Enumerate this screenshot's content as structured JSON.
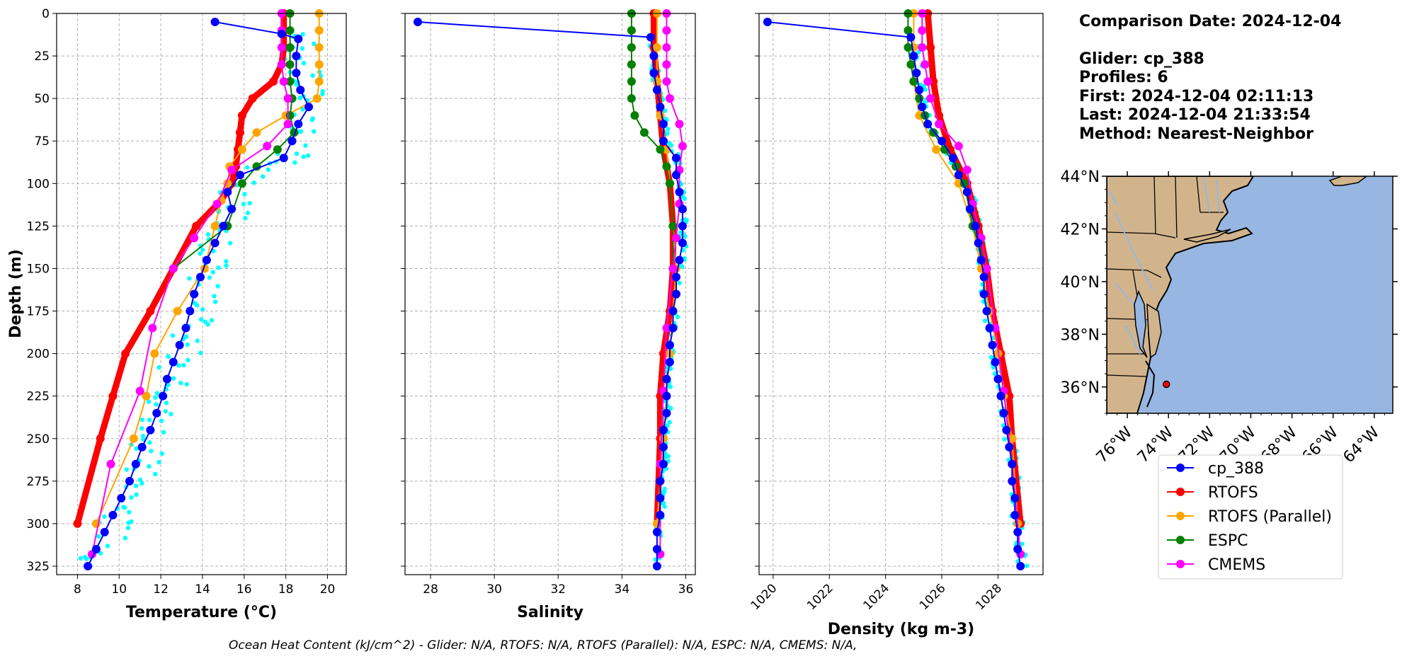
{
  "info": {
    "comparison": "Comparison Date: 2024-12-04",
    "glider": "Glider: cp_388",
    "profiles": "Profiles: 6",
    "first": "First: 2024-12-04 02:11:13",
    "last": "Last: 2024-12-04 21:33:54",
    "method": "Method: Nearest-Neighbor"
  },
  "footer": "Ocean Heat Content (kJ/cm^2) - Glider: N/A,  RTOFS: N/A,  RTOFS (Parallel): N/A,  ESPC: N/A,  CMEMS: N/A,",
  "colors": {
    "cp_388": "#0000ff",
    "RTOFS": "#ff0000",
    "RTOFS (Parallel)": "#ffa500",
    "ESPC": "#008000",
    "CMEMS": "#ff00ff",
    "raw": "#00ffff",
    "land": "#d2b48c",
    "ocean": "#97b6e1"
  },
  "legend": [
    "cp_388",
    "RTOFS",
    "RTOFS (Parallel)",
    "ESPC",
    "CMEMS"
  ],
  "map": {
    "lat_ticks": [
      "44°N",
      "42°N",
      "40°N",
      "38°N",
      "36°N"
    ],
    "lat_values": [
      44,
      42,
      40,
      38,
      36
    ],
    "lon_ticks": [
      "76°W",
      "74°W",
      "72°W",
      "70°W",
      "68°W",
      "66°W",
      "64°W"
    ],
    "lon_values": [
      -76,
      -74,
      -72,
      -70,
      -68,
      -66,
      -64
    ],
    "extent": {
      "lon": [
        -77,
        -63.1
      ],
      "lat": [
        35,
        44
      ]
    },
    "glider_position": {
      "lon": -74.1,
      "lat": 36.1
    }
  },
  "chart_data": [
    {
      "type": "line",
      "xlabel": "Temperature (°C)",
      "ylabel": "Depth (m)",
      "xlim": [
        7,
        20.9
      ],
      "ylim": [
        330,
        0
      ],
      "xticks": [
        8,
        10,
        12,
        14,
        16,
        18,
        20
      ],
      "yticks": [
        0,
        25,
        50,
        75,
        100,
        125,
        150,
        175,
        200,
        225,
        250,
        275,
        300,
        325
      ],
      "series": [
        {
          "name": "cp_388",
          "depth": [
            5,
            12,
            15,
            25,
            35,
            45,
            55,
            65,
            75,
            85,
            95,
            105,
            115,
            125,
            135,
            145,
            155,
            165,
            175,
            185,
            195,
            205,
            215,
            225,
            235,
            245,
            255,
            265,
            275,
            285,
            295,
            305,
            315,
            325
          ],
          "values": [
            14.6,
            17.8,
            18.6,
            18.5,
            18.5,
            18.7,
            19.1,
            18.6,
            18.3,
            17.9,
            15.8,
            15.2,
            15.4,
            15.0,
            14.6,
            14.2,
            13.9,
            13.6,
            13.4,
            13.2,
            12.9,
            12.6,
            12.3,
            12.1,
            11.8,
            11.5,
            11.1,
            10.8,
            10.5,
            10.1,
            9.7,
            9.3,
            8.9,
            8.5
          ]
        },
        {
          "name": "RTOFS",
          "depth": [
            0,
            10,
            20,
            30,
            40,
            50,
            60,
            70,
            80,
            90,
            100,
            110,
            125,
            150,
            175,
            200,
            225,
            250,
            300
          ],
          "values": [
            17.9,
            17.9,
            17.9,
            17.8,
            17.4,
            16.4,
            15.9,
            15.8,
            15.7,
            15.6,
            15.4,
            14.9,
            13.7,
            12.6,
            11.5,
            10.3,
            9.7,
            9.1,
            8.0
          ]
        },
        {
          "name": "RTOFS (Parallel)",
          "depth": [
            0,
            10,
            20,
            30,
            40,
            50,
            60,
            70,
            80,
            90,
            100,
            110,
            125,
            150,
            175,
            200,
            225,
            250,
            300
          ],
          "values": [
            19.6,
            19.6,
            19.6,
            19.6,
            19.6,
            19.5,
            18.0,
            16.6,
            15.9,
            15.3,
            15.2,
            14.9,
            14.6,
            14.1,
            12.8,
            11.7,
            11.3,
            10.7,
            8.9
          ]
        },
        {
          "name": "ESPC",
          "depth": [
            0,
            10,
            20,
            30,
            40,
            50,
            60,
            70,
            80,
            90,
            100,
            125,
            150
          ],
          "values": [
            18.2,
            18.2,
            18.2,
            18.2,
            18.2,
            18.3,
            18.2,
            18.4,
            17.6,
            16.6,
            15.9,
            15.2,
            12.6
          ]
        },
        {
          "name": "CMEMS",
          "depth": [
            0,
            10,
            20,
            30,
            40,
            50,
            65,
            78,
            92,
            112,
            132,
            150,
            185,
            222,
            265,
            318
          ],
          "values": [
            17.8,
            17.8,
            17.8,
            17.8,
            17.9,
            18.1,
            18.1,
            17.1,
            15.4,
            14.7,
            13.6,
            12.6,
            11.6,
            11.0,
            9.6,
            8.7
          ]
        }
      ]
    },
    {
      "type": "line",
      "xlabel": "Salinity",
      "ylabel": "",
      "xlim": [
        27.2,
        36.3
      ],
      "ylim": [
        330,
        0
      ],
      "xticks": [
        28,
        30,
        32,
        34,
        36
      ],
      "series": [
        {
          "name": "cp_388",
          "depth": [
            5,
            14,
            25,
            35,
            45,
            55,
            65,
            75,
            85,
            95,
            105,
            115,
            125,
            135,
            145,
            155,
            165,
            175,
            185,
            195,
            205,
            215,
            225,
            235,
            245,
            255,
            265,
            275,
            285,
            295,
            305,
            315,
            325
          ],
          "values": [
            27.6,
            34.9,
            35.0,
            35.0,
            35.1,
            35.2,
            35.3,
            35.3,
            35.7,
            35.7,
            35.8,
            35.9,
            35.9,
            35.9,
            35.8,
            35.7,
            35.7,
            35.6,
            35.6,
            35.5,
            35.5,
            35.4,
            35.4,
            35.4,
            35.3,
            35.3,
            35.3,
            35.2,
            35.2,
            35.2,
            35.1,
            35.1,
            35.1
          ]
        },
        {
          "name": "RTOFS",
          "depth": [
            0,
            20,
            40,
            60,
            80,
            100,
            125,
            150,
            175,
            200,
            225,
            250,
            300
          ],
          "values": [
            35.0,
            35.0,
            35.1,
            35.2,
            35.3,
            35.5,
            35.6,
            35.6,
            35.5,
            35.3,
            35.2,
            35.2,
            35.1
          ]
        },
        {
          "name": "RTOFS (Parallel)",
          "depth": [
            0,
            20,
            40,
            60,
            80,
            100,
            125,
            150,
            175,
            200,
            225,
            250,
            300
          ],
          "values": [
            35.1,
            35.1,
            35.1,
            35.2,
            35.4,
            35.5,
            35.6,
            35.7,
            35.6,
            35.5,
            35.4,
            35.3,
            35.1
          ]
        },
        {
          "name": "ESPC",
          "depth": [
            0,
            10,
            20,
            30,
            40,
            50,
            60,
            70,
            80,
            90,
            100,
            125,
            150
          ],
          "values": [
            34.3,
            34.3,
            34.3,
            34.3,
            34.3,
            34.3,
            34.4,
            34.7,
            35.2,
            35.4,
            35.5,
            35.6,
            35.6
          ]
        },
        {
          "name": "CMEMS",
          "depth": [
            0,
            10,
            20,
            30,
            40,
            50,
            65,
            78,
            92,
            112,
            132,
            150,
            185,
            222,
            265,
            318
          ],
          "values": [
            35.4,
            35.4,
            35.4,
            35.4,
            35.4,
            35.5,
            35.8,
            35.9,
            35.8,
            35.8,
            35.7,
            35.6,
            35.4,
            35.3,
            35.2,
            35.2
          ]
        }
      ]
    },
    {
      "type": "line",
      "xlabel": "Density (kg m-3)",
      "ylabel": "",
      "xlim": [
        1019.5,
        1029.6
      ],
      "ylim": [
        330,
        0
      ],
      "xticks": [
        1020,
        1022,
        1024,
        1026,
        1028
      ],
      "series": [
        {
          "name": "cp_388",
          "depth": [
            5,
            14,
            25,
            35,
            45,
            55,
            65,
            75,
            85,
            95,
            105,
            115,
            125,
            135,
            145,
            155,
            165,
            175,
            185,
            195,
            205,
            215,
            225,
            235,
            245,
            255,
            265,
            275,
            285,
            295,
            305,
            315,
            325
          ],
          "values": [
            1019.8,
            1024.9,
            1025.0,
            1025.1,
            1025.2,
            1025.3,
            1025.5,
            1026.0,
            1026.4,
            1026.6,
            1026.9,
            1027.0,
            1027.2,
            1027.3,
            1027.4,
            1027.5,
            1027.5,
            1027.6,
            1027.7,
            1027.8,
            1027.9,
            1028.0,
            1028.1,
            1028.2,
            1028.3,
            1028.4,
            1028.5,
            1028.5,
            1028.6,
            1028.6,
            1028.7,
            1028.7,
            1028.8
          ]
        },
        {
          "name": "RTOFS",
          "depth": [
            0,
            20,
            40,
            60,
            80,
            100,
            125,
            150,
            175,
            200,
            225,
            250,
            300
          ],
          "values": [
            1025.5,
            1025.6,
            1025.7,
            1025.9,
            1026.3,
            1026.9,
            1027.3,
            1027.6,
            1027.8,
            1028.1,
            1028.4,
            1028.5,
            1028.8
          ]
        },
        {
          "name": "RTOFS (Parallel)",
          "depth": [
            0,
            20,
            40,
            60,
            80,
            100,
            125,
            150,
            175,
            200,
            225,
            250,
            300
          ],
          "values": [
            1025.0,
            1025.0,
            1025.0,
            1025.2,
            1025.8,
            1026.6,
            1027.1,
            1027.4,
            1027.7,
            1028.0,
            1028.2,
            1028.5,
            1028.7
          ]
        },
        {
          "name": "ESPC",
          "depth": [
            0,
            10,
            20,
            30,
            40,
            50,
            60,
            70,
            80,
            90,
            100,
            125,
            150
          ],
          "values": [
            1024.8,
            1024.8,
            1024.8,
            1024.9,
            1025.0,
            1025.2,
            1025.4,
            1025.7,
            1026.1,
            1026.5,
            1026.8,
            1027.1,
            1027.6
          ]
        },
        {
          "name": "CMEMS",
          "depth": [
            0,
            10,
            20,
            30,
            40,
            50,
            65,
            78,
            92,
            112,
            132,
            150,
            185,
            222,
            265,
            318
          ],
          "values": [
            1025.3,
            1025.3,
            1025.3,
            1025.4,
            1025.5,
            1025.6,
            1025.9,
            1026.6,
            1026.9,
            1027.1,
            1027.4,
            1027.6,
            1027.9,
            1028.2,
            1028.5,
            1028.8
          ]
        }
      ]
    }
  ]
}
